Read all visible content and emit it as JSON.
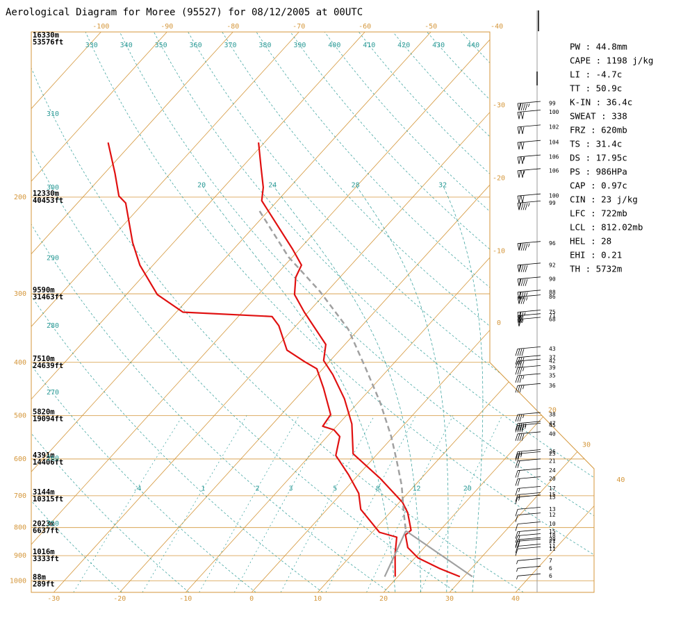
{
  "chart_data": {
    "type": "skewt",
    "title": "Aerological Diagram for Moree (95527) for 08/12/2005 at 00UTC",
    "ylim": [
      1050,
      100
    ],
    "xlim": [
      -33.4,
      51.9
    ],
    "yticks": [
      200,
      300,
      400,
      500,
      600,
      700,
      800,
      900,
      1000
    ],
    "heights": [
      {
        "pressure": 100,
        "m": "16330m",
        "ft": "53576ft"
      },
      {
        "pressure": 200,
        "m": "12330m",
        "ft": "40453ft"
      },
      {
        "pressure": 300,
        "m": "9590m",
        "ft": "31463ft"
      },
      {
        "pressure": 400,
        "m": "7510m",
        "ft": "24639ft"
      },
      {
        "pressure": 500,
        "m": "5820m",
        "ft": "19094ft"
      },
      {
        "pressure": 600,
        "m": "4391m",
        "ft": "14406ft"
      },
      {
        "pressure": 700,
        "m": "3144m",
        "ft": "10315ft"
      },
      {
        "pressure": 800,
        "m": "2023m",
        "ft": "6637ft"
      },
      {
        "pressure": 900,
        "m": "1016m",
        "ft": "3333ft"
      },
      {
        "pressure": 1000,
        "m": "88m",
        "ft": "289ft"
      }
    ],
    "xticks": [
      -30,
      -20,
      -10,
      0,
      10,
      20,
      30,
      40
    ],
    "top_ticks": [
      -100,
      -90,
      -80,
      -70,
      -60,
      -50,
      -40
    ],
    "right_ticks": [
      -30,
      -20,
      -10,
      0,
      20,
      30,
      40
    ],
    "dry_adiabats": [
      250,
      260,
      270,
      280,
      290,
      300,
      310,
      330,
      340,
      350,
      360,
      370,
      380,
      390,
      400,
      410,
      420,
      430,
      440
    ],
    "moist_adiabats": [
      20,
      24,
      28,
      32
    ],
    "mixing_ratios": [
      {
        "value": 0.4,
        "label": ".4"
      },
      1,
      2,
      3,
      5,
      8,
      12,
      20
    ],
    "series": [
      {
        "color": "#e01010",
        "dash": false,
        "pressure": [
          159,
          176,
          192,
          203,
          249,
          266,
          280,
          301,
          324,
          371,
          397,
          421,
          466,
          518,
          587,
          650,
          720,
          752,
          809,
          825,
          870,
          909,
          949,
          983
        ],
        "values": [
          -60.9,
          -57.2,
          -54.0,
          -52.4,
          -41.0,
          -37.5,
          -36.7,
          -34.5,
          -30.6,
          -22.9,
          -21.0,
          -17.7,
          -12.6,
          -8.0,
          -3.7,
          3.7,
          10.5,
          12.7,
          15.6,
          15.4,
          17.5,
          20.5,
          25.1,
          29.4
        ]
      },
      {
        "color": "#e01010",
        "dash": false,
        "pressure": [
          159,
          181,
          199,
          205,
          242,
          266,
          301,
          324,
          330,
          343,
          380,
          399,
          411,
          446,
          498,
          523,
          531,
          546,
          591,
          641,
          693,
          741,
          816,
          833,
          895,
          983
        ],
        "values": [
          -83.7,
          -78.4,
          -74.7,
          -72.7,
          -66.2,
          -62.0,
          -55.3,
          -49.0,
          -34.9,
          -32.6,
          -28.0,
          -23.7,
          -20.9,
          -17.2,
          -12.5,
          -12.1,
          -9.9,
          -8.1,
          -6.1,
          -1.5,
          2.6,
          5.1,
          11.1,
          14.4,
          16.5,
          19.6
        ]
      },
      {
        "color": "#a0a0a0",
        "dash": true,
        "pressure": [
          212,
          257,
          297,
          348,
          409,
          472,
          546,
          605,
          670,
          752,
          811
        ],
        "values": [
          -51.3,
          -40.6,
          -31.1,
          -21.6,
          -13.7,
          -6.8,
          -0.3,
          3.9,
          8.0,
          12.1,
          14.9
        ]
      },
      {
        "color": "#a0a0a0",
        "dash": false,
        "pressure": [
          811,
          983
        ],
        "values": [
          14.9,
          31.3
        ]
      },
      {
        "color": "#a0a0a0",
        "dash": false,
        "pressure": [
          811,
          983
        ],
        "values": [
          14.9,
          18.0
        ]
      }
    ],
    "winds": {
      "pressure": [
        135,
        140,
        149,
        159,
        169,
        179,
        199,
        205,
        243,
        266,
        282,
        298,
        304,
        324,
        329,
        334,
        378,
        392,
        398,
        409,
        423,
        441,
        498,
        517,
        521,
        540,
        582,
        587,
        605,
        630,
        652,
        679,
        697,
        704,
        741,
        759,
        788,
        814,
        828,
        842,
        847,
        865,
        875,
        919,
        949,
        980
      ],
      "values": [
        99,
        100,
        102,
        104,
        106,
        106,
        100,
        99,
        96,
        92,
        90,
        88,
        86,
        75,
        71,
        68,
        43,
        37,
        42,
        39,
        35,
        36,
        38,
        47,
        45,
        40,
        26,
        25,
        21,
        24,
        20,
        17,
        15,
        15,
        13,
        12,
        10,
        15,
        18,
        20,
        21,
        11,
        11,
        7,
        6,
        6
      ]
    },
    "indices": [
      "PW : 44.8mm",
      "CAPE : 1198 j/kg",
      "LI : -4.7c",
      "TT : 50.9c",
      "K-IN : 36.4c",
      "SWEAT : 338",
      "FRZ : 620mb",
      "TS : 31.4c",
      "DS : 17.95c",
      "PS : 986HPa",
      "CAP : 0.97c",
      "CIN : 23 j/kg",
      "LFC : 722mb",
      "LCL : 812.02mb",
      "HEL : 28",
      "EHI : 0.21",
      "TH : 5732m"
    ]
  }
}
